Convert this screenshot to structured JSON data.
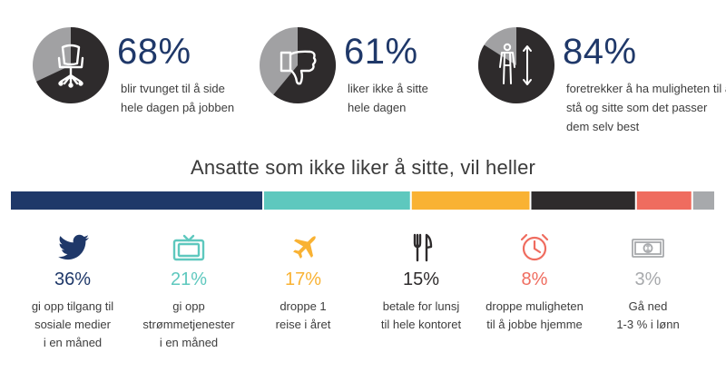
{
  "colors": {
    "navy": "#1f3869",
    "teal": "#5ec8be",
    "yellow": "#f9b233",
    "dark": "#2e2b2c",
    "coral": "#ef6c5f",
    "gray": "#a7a9ac",
    "pie_dark": "#2e2b2c",
    "pie_gray": "#a1a1a3"
  },
  "stats": [
    {
      "percent": "68%",
      "value": 68,
      "icon": "office-chair-icon",
      "text": [
        "blir tvunget til å side",
        "hele dagen på jobben"
      ]
    },
    {
      "percent": "61%",
      "value": 61,
      "icon": "thumbs-down-icon",
      "text": [
        "liker ikke å sitte",
        "hele dagen"
      ]
    },
    {
      "percent": "84%",
      "value": 84,
      "icon": "standing-person-icon",
      "text": [
        "foretrekker å ha muligheten til å",
        "stå og sitte som det passer",
        "dem selv best"
      ]
    }
  ],
  "section_title": "Ansatte som ikke liker å sitte, vil heller",
  "chart_data": {
    "type": "bar",
    "stacked": true,
    "title": "Ansatte som ikke liker å sitte, vil heller",
    "categories": [
      "gi opp tilgang til sosiale medier i en måned",
      "gi opp strømmetjenester i en måned",
      "droppe 1 reise i året",
      "betale for lunsj til hele kontoret",
      "droppe muligheten til å jobbe hjemme",
      "Gå ned 1-3 % i lønn"
    ],
    "values": [
      36,
      21,
      17,
      15,
      8,
      3
    ],
    "colors": [
      "#1f3869",
      "#5ec8be",
      "#f9b233",
      "#2e2b2c",
      "#ef6c5f",
      "#a7a9ac"
    ]
  },
  "columns": [
    {
      "percent": "36%",
      "icon": "twitter-bird-icon",
      "color": "#1f3869",
      "text": [
        "gi opp tilgang til",
        "sosiale medier",
        "i en måned"
      ]
    },
    {
      "percent": "21%",
      "icon": "tv-icon",
      "color": "#5ec8be",
      "text": [
        "gi opp",
        "strømmetjenester",
        "i en måned"
      ]
    },
    {
      "percent": "17%",
      "icon": "airplane-icon",
      "color": "#f9b233",
      "text": [
        "droppe 1",
        "reise i året"
      ]
    },
    {
      "percent": "15%",
      "icon": "fork-knife-icon",
      "color": "#2e2b2c",
      "text": [
        "betale for lunsj",
        "til hele kontoret"
      ]
    },
    {
      "percent": "8%",
      "icon": "clock-icon",
      "color": "#ef6c5f",
      "text": [
        "droppe muligheten",
        "til å jobbe hjemme"
      ]
    },
    {
      "percent": "3%",
      "icon": "money-bill-icon",
      "color": "#a7a9ac",
      "text": [
        "Gå ned",
        "1-3 % i lønn"
      ]
    }
  ]
}
